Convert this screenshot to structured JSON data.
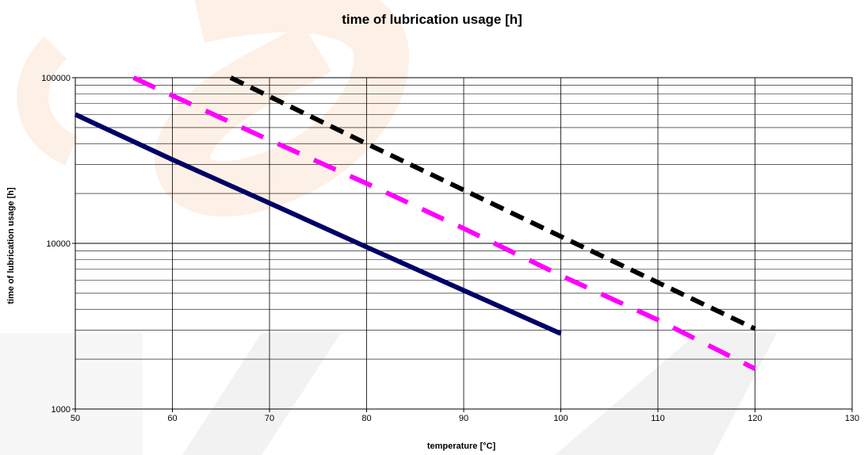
{
  "chart_data": {
    "type": "line",
    "title": "time of lubrication usage [h]",
    "xlabel": "temperature [°C]",
    "ylabel": "time of lubrication usage [h]",
    "xlim": [
      50,
      130
    ],
    "ylim": [
      1000,
      100000
    ],
    "y_scale": "log",
    "grid": true,
    "legend": "none",
    "x_ticks": [
      50,
      60,
      70,
      80,
      90,
      100,
      110,
      120,
      130
    ],
    "y_ticks": [
      1000,
      10000,
      100000
    ],
    "series": [
      {
        "color": "#000066",
        "style": "solid",
        "x": [
          50,
          60,
          70,
          80,
          90,
          100
        ],
        "y": [
          60000,
          32000,
          17500,
          9500,
          5200,
          2850
        ]
      },
      {
        "color": "#ff00ff",
        "style": "dashed",
        "x": [
          56,
          60,
          70,
          80,
          90,
          100,
          110,
          120
        ],
        "y": [
          100000,
          78000,
          42000,
          23000,
          12300,
          6400,
          3450,
          1750
        ]
      },
      {
        "color": "#000000",
        "style": "dashed",
        "x": [
          66,
          70,
          80,
          90,
          100,
          110,
          120
        ],
        "y": [
          100000,
          77000,
          40000,
          21000,
          11000,
          5800,
          3050
        ]
      }
    ]
  },
  "colors": {
    "watermark_orange": "#f7c39b",
    "watermark_gray": "#ededed",
    "grid": "#000000"
  }
}
